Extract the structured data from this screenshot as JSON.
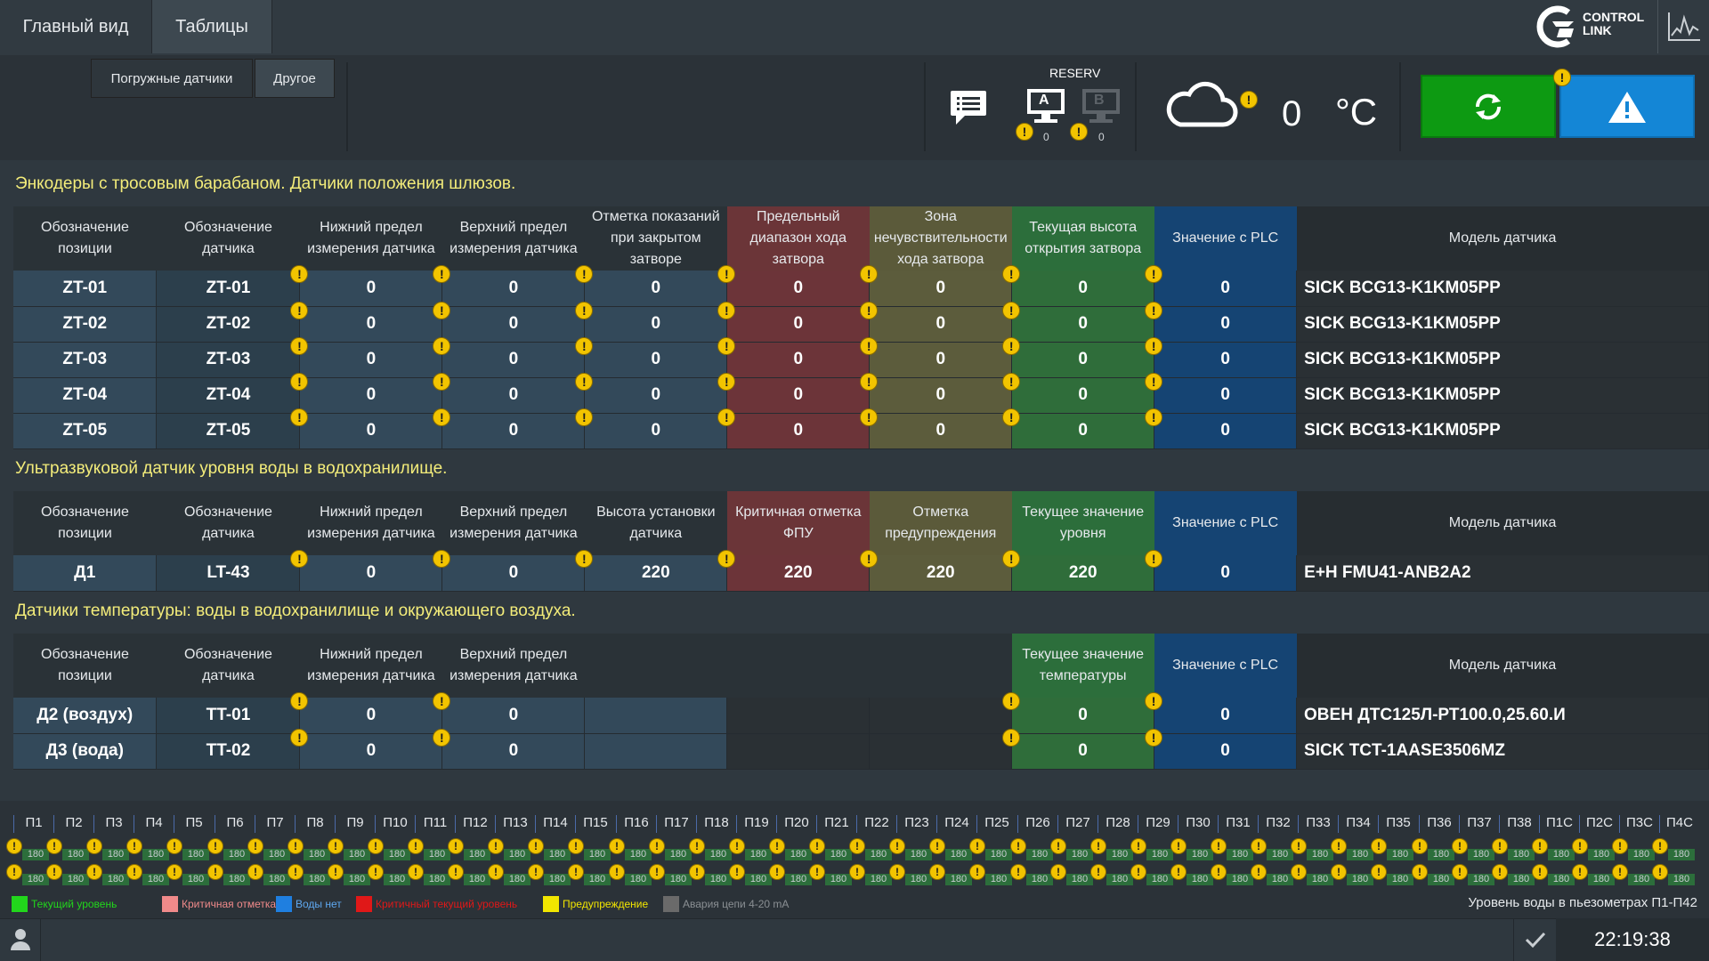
{
  "nav": {
    "tabs": [
      {
        "label": "Главный вид"
      },
      {
        "label": "Таблицы"
      }
    ]
  },
  "logo": {
    "line1": "CONTROL",
    "line2": "LINK"
  },
  "subtabs": [
    {
      "label": "Погружные датчики"
    },
    {
      "label": "Другое"
    }
  ],
  "status": {
    "reserv_label": "RESERV",
    "server_a": "A",
    "server_b": "B",
    "count_a": "0",
    "count_b": "0",
    "temperature": "0",
    "temp_unit": "°C"
  },
  "section1": {
    "title": "Энкодеры с тросовым барабаном. Датчики положения шлюзов.",
    "headers": [
      "Обозначение позиции",
      "Обозначение датчика",
      "Нижний предел измерения датчика",
      "Верхний предел измерения датчика",
      "Отметка показаний при закрытом затворе",
      "Предельный диапазон хода затвора",
      "Зона нечувствительности хода затвора",
      "Текущая высота открытия затвора",
      "Значение с PLC",
      "Модель датчика"
    ],
    "rows": [
      [
        "ZT-01",
        "ZT-01",
        "0",
        "0",
        "0",
        "0",
        "0",
        "0",
        "0",
        "SICK BCG13-K1KM05PP"
      ],
      [
        "ZT-02",
        "ZT-02",
        "0",
        "0",
        "0",
        "0",
        "0",
        "0",
        "0",
        "SICK BCG13-K1KM05PP"
      ],
      [
        "ZT-03",
        "ZT-03",
        "0",
        "0",
        "0",
        "0",
        "0",
        "0",
        "0",
        "SICK BCG13-K1KM05PP"
      ],
      [
        "ZT-04",
        "ZT-04",
        "0",
        "0",
        "0",
        "0",
        "0",
        "0",
        "0",
        "SICK BCG13-K1KM05PP"
      ],
      [
        "ZT-05",
        "ZT-05",
        "0",
        "0",
        "0",
        "0",
        "0",
        "0",
        "0",
        "SICK BCG13-K1KM05PP"
      ]
    ]
  },
  "section2": {
    "title": "Ультразвуковой датчик уровня воды в водохранилище.",
    "headers": [
      "Обозначение позиции",
      "Обозначение датчика",
      "Нижний предел измерения датчика",
      "Верхний предел измерения датчика",
      "Высота установки датчика",
      "Критичная отметка ФПУ",
      "Отметка предупреждения",
      "Текущее значение уровня",
      "Значение с PLC",
      "Модель датчика"
    ],
    "rows": [
      [
        "Д1",
        "LT-43",
        "0",
        "0",
        "220",
        "220",
        "220",
        "220",
        "0",
        "E+H FMU41-ANB2A2"
      ]
    ]
  },
  "section3": {
    "title": "Датчики температуры: воды в водохранилище и окружающего воздуха.",
    "headers": [
      "Обозначение позиции",
      "Обозначение датчика",
      "Нижний предел измерения датчика",
      "Верхний предел измерения датчика",
      "",
      "",
      "",
      "Текущее значение температуры",
      "Значение с PLC",
      "Модель датчика"
    ],
    "rows": [
      [
        "Д2 (воздух)",
        "TT-01",
        "0",
        "0",
        "",
        "",
        "",
        "0",
        "0",
        "ОВЕН ДТС125Л-РТ100.0,25.60.И"
      ],
      [
        "Д3 (вода)",
        "TT-02",
        "0",
        "0",
        "",
        "",
        "",
        "0",
        "0",
        "SICK TCT-1AASE3506MZ"
      ]
    ]
  },
  "piezometers": {
    "labels": [
      "П1",
      "П2",
      "П3",
      "П4",
      "П5",
      "П6",
      "П7",
      "П8",
      "П9",
      "П10",
      "П11",
      "П12",
      "П13",
      "П14",
      "П15",
      "П16",
      "П17",
      "П18",
      "П19",
      "П20",
      "П21",
      "П22",
      "П23",
      "П24",
      "П25",
      "П26",
      "П27",
      "П28",
      "П29",
      "П30",
      "П31",
      "П32",
      "П33",
      "П34",
      "П35",
      "П36",
      "П37",
      "П38",
      "П1С",
      "П2С",
      "П3С",
      "П4С"
    ],
    "value": "180",
    "title": "Уровень воды в пьезометрах П1-П42"
  },
  "legend": [
    {
      "label": "Текущий уровень",
      "color": "#22d61c",
      "text_color": "#22d61c"
    },
    {
      "label": "Критичная отметка",
      "color": "#f08a8a",
      "text_color": "#f08a8a"
    },
    {
      "label": "Воды нет",
      "color": "#1f7fe0",
      "text_color": "#5fa8f0"
    },
    {
      "label": "Критичный текущий уровень",
      "color": "#e01818",
      "text_color": "#e01818"
    },
    {
      "label": "Предупреждение",
      "color": "#f2e600",
      "text_color": "#f2e600"
    },
    {
      "label": "Авария цепи 4-20 mA",
      "color": "#6a6a6a",
      "text_color": "#8a8f93"
    }
  ],
  "footer": {
    "clock": "22:19:38"
  }
}
